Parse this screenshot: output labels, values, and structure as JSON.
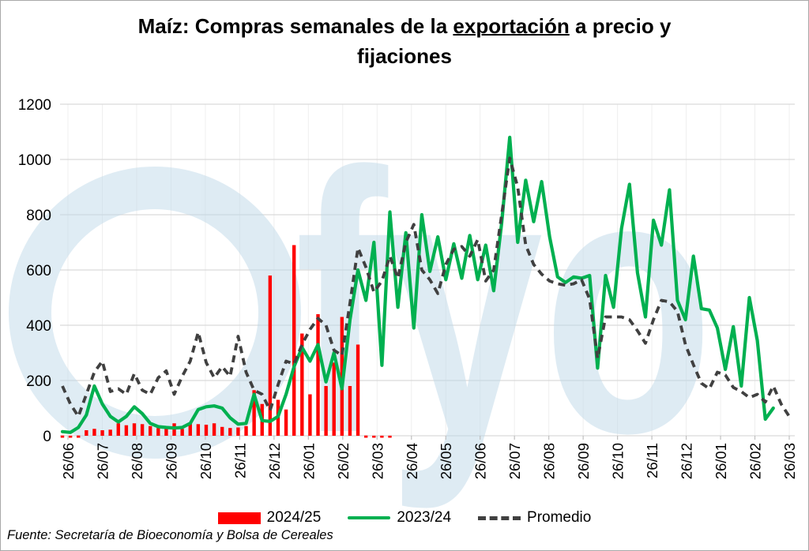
{
  "title": {
    "part1": "Maíz: Compras semanales de la ",
    "underline": "exportación",
    "part2": " a precio y",
    "line2": "fijaciones"
  },
  "source": "Fuente: Secretaría de Bioeconomía y Bolsa de Cereales",
  "watermark": "fyo",
  "legend": [
    {
      "label": "2024/25",
      "swatch": "bar",
      "color": "#FF0000"
    },
    {
      "label": "2023/24",
      "swatch": "line",
      "color": "#00B050"
    },
    {
      "label": "Promedio",
      "swatch": "dash",
      "color": "#404040"
    }
  ],
  "chart_data": {
    "type": "bar+line combo, weekly series",
    "title": "Maíz: Compras semanales de la exportación a precio y fijaciones",
    "ylim": [
      0,
      1200
    ],
    "y_ticks": [
      0,
      200,
      400,
      600,
      800,
      1000,
      1200
    ],
    "grid": "horizontal major + faint vertical at month ticks",
    "legend_position": "bottom center",
    "x_labels": [
      "26/06",
      "26/07",
      "26/08",
      "26/09",
      "26/10",
      "26/11",
      "26/12",
      "26/01",
      "26/02",
      "26/03",
      "26/04",
      "26/05",
      "26/06",
      "26/07",
      "26/08",
      "26/09",
      "26/10",
      "26/11",
      "26/12",
      "26/01",
      "26/02",
      "26/03"
    ],
    "weeks_per_month_tick": 4.333,
    "series": [
      {
        "name": "2024/25",
        "type": "bar",
        "color": "#FF0000",
        "values": [
          8,
          5,
          8,
          20,
          25,
          20,
          22,
          45,
          38,
          45,
          42,
          35,
          28,
          30,
          45,
          25,
          45,
          42,
          40,
          45,
          32,
          28,
          30,
          35,
          165,
          115,
          580,
          130,
          95,
          690,
          370,
          150,
          440,
          180,
          265,
          430,
          180,
          330,
          8,
          6,
          5,
          4,
          null,
          null,
          null,
          null,
          null,
          null,
          null,
          null,
          null,
          null,
          null,
          null,
          null,
          null,
          null,
          null,
          null,
          null,
          null,
          null,
          null,
          null,
          null,
          null,
          null,
          null,
          null,
          null,
          null,
          null,
          null,
          null,
          null,
          null,
          null,
          null,
          null,
          null,
          null,
          null,
          null,
          null,
          null,
          null,
          null,
          null,
          null,
          null,
          null,
          null
        ]
      },
      {
        "name": "2023/24",
        "type": "line",
        "color": "#00B050",
        "values": [
          15,
          12,
          30,
          75,
          180,
          115,
          70,
          50,
          70,
          105,
          80,
          45,
          33,
          30,
          28,
          30,
          45,
          95,
          105,
          108,
          100,
          65,
          42,
          45,
          150,
          55,
          52,
          70,
          150,
          250,
          320,
          270,
          330,
          195,
          300,
          170,
          420,
          600,
          490,
          700,
          255,
          810,
          465,
          735,
          390,
          800,
          595,
          720,
          565,
          695,
          570,
          725,
          565,
          690,
          525,
          770,
          1080,
          700,
          925,
          775,
          920,
          720,
          575,
          555,
          575,
          570,
          580,
          245,
          580,
          465,
          750,
          910,
          590,
          430,
          780,
          690,
          890,
          490,
          420,
          650,
          460,
          455,
          390,
          240,
          395,
          180,
          500,
          345,
          60,
          100,
          null,
          null
        ]
      },
      {
        "name": "Promedio",
        "type": "line-dashed",
        "color": "#404040",
        "values": [
          180,
          115,
          70,
          150,
          230,
          270,
          160,
          170,
          150,
          225,
          165,
          150,
          210,
          235,
          150,
          215,
          270,
          375,
          265,
          210,
          250,
          215,
          360,
          230,
          165,
          150,
          92,
          185,
          270,
          260,
          330,
          385,
          425,
          400,
          310,
          290,
          480,
          680,
          610,
          520,
          560,
          650,
          570,
          700,
          765,
          600,
          565,
          515,
          620,
          675,
          685,
          650,
          710,
          560,
          600,
          800,
          1005,
          900,
          690,
          620,
          585,
          560,
          550,
          545,
          550,
          565,
          495,
          280,
          430,
          430,
          430,
          420,
          380,
          335,
          420,
          490,
          485,
          450,
          330,
          257,
          190,
          170,
          230,
          220,
          175,
          160,
          138,
          150,
          122,
          180,
          114,
          70
        ]
      }
    ]
  },
  "colors": {
    "grid": "#D9D9D9",
    "grid_vertical": "#EFEFEF",
    "tick": "#BFBFBF",
    "axis_text": "#000000",
    "watermark": "#BFD9E9"
  }
}
